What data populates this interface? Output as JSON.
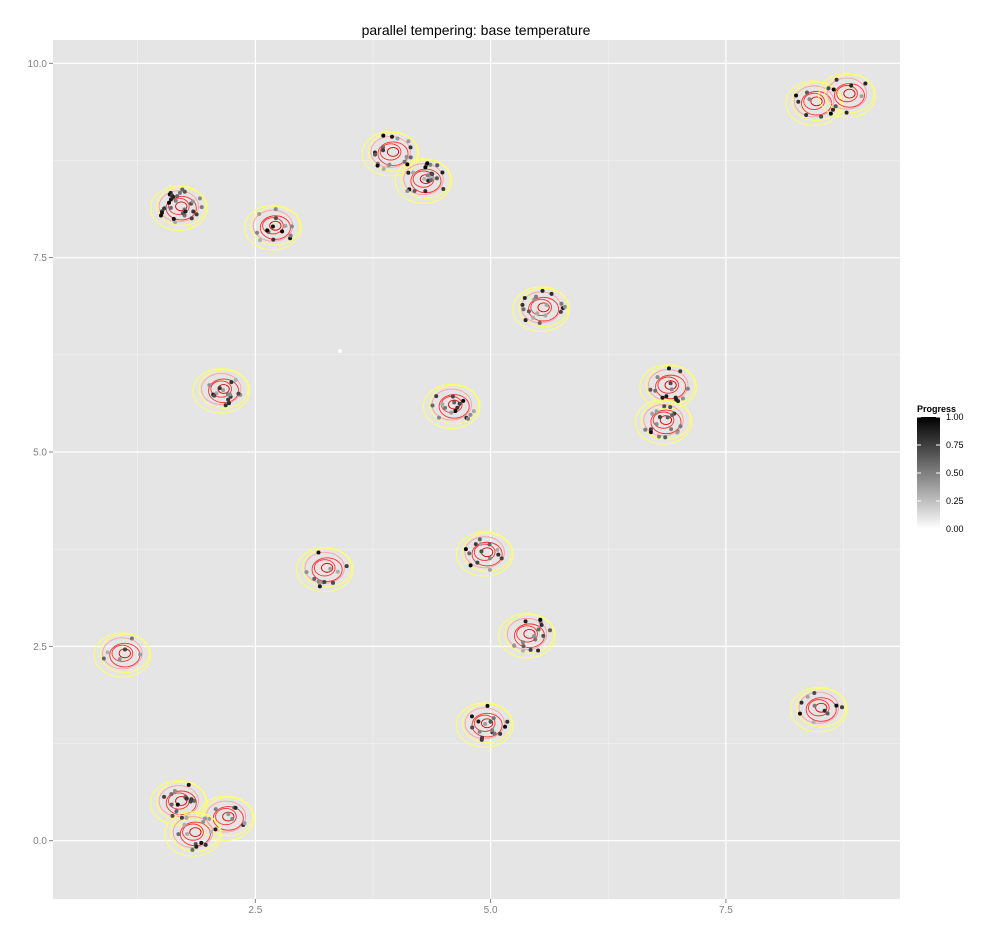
{
  "chart_data": {
    "type": "scatter",
    "title": "parallel tempering: base temperature",
    "xlabel": "",
    "ylabel": "",
    "xlim": [
      0.35,
      9.35
    ],
    "ylim": [
      -0.75,
      10.3
    ],
    "x_ticks": [
      2.5,
      5.0,
      7.5
    ],
    "x_tick_labels": [
      "2.5",
      "5.0",
      "7.5"
    ],
    "y_ticks": [
      0.0,
      2.5,
      5.0,
      7.5,
      10.0
    ],
    "y_tick_labels": [
      "0.0",
      "2.5",
      "5.0",
      "7.5",
      "10.0"
    ],
    "grid": true,
    "panel_background": "#e5e5e5",
    "grid_color": "#ffffff",
    "contour_colors": [
      "#ffff66",
      "#ffa0a0",
      "#ff3030",
      "#e00000"
    ],
    "legend": {
      "title": "Progress",
      "position": "right",
      "gradient": [
        "#ffffff",
        "#000000"
      ],
      "range": [
        0,
        1
      ],
      "labels": [
        "1.00",
        "0.75",
        "0.50",
        "0.25",
        "0.00"
      ],
      "label_values": [
        1.0,
        0.75,
        0.5,
        0.25,
        0.0
      ]
    },
    "modes": [
      {
        "x": 1.7,
        "y": 8.15,
        "n": 30
      },
      {
        "x": 2.7,
        "y": 7.9,
        "n": 14
      },
      {
        "x": 3.95,
        "y": 8.85,
        "n": 18
      },
      {
        "x": 4.3,
        "y": 8.5,
        "n": 22
      },
      {
        "x": 8.45,
        "y": 9.5,
        "n": 8
      },
      {
        "x": 8.8,
        "y": 9.6,
        "n": 8
      },
      {
        "x": 2.15,
        "y": 5.8,
        "n": 16
      },
      {
        "x": 4.6,
        "y": 5.6,
        "n": 16
      },
      {
        "x": 5.55,
        "y": 6.85,
        "n": 18
      },
      {
        "x": 6.9,
        "y": 5.85,
        "n": 14
      },
      {
        "x": 6.85,
        "y": 5.4,
        "n": 18
      },
      {
        "x": 3.25,
        "y": 3.5,
        "n": 12
      },
      {
        "x": 4.95,
        "y": 3.7,
        "n": 14
      },
      {
        "x": 5.4,
        "y": 2.65,
        "n": 16
      },
      {
        "x": 1.1,
        "y": 2.4,
        "n": 6
      },
      {
        "x": 4.95,
        "y": 1.5,
        "n": 16
      },
      {
        "x": 8.5,
        "y": 1.7,
        "n": 10
      },
      {
        "x": 1.7,
        "y": 0.5,
        "n": 14
      },
      {
        "x": 2.2,
        "y": 0.3,
        "n": 10
      },
      {
        "x": 1.85,
        "y": 0.1,
        "n": 12
      }
    ],
    "points": [
      {
        "x": 3.4,
        "y": 6.3,
        "progress": 0.0
      }
    ]
  }
}
